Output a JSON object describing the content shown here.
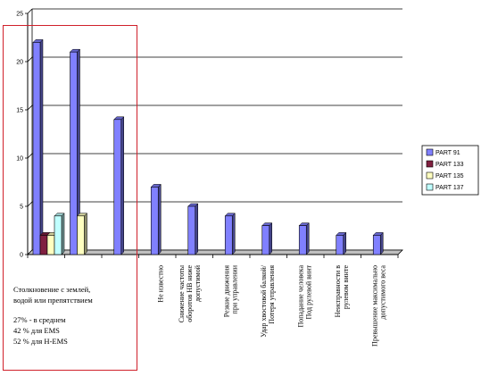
{
  "chart_data": {
    "type": "bar",
    "categories": [
      "",
      "",
      "",
      "Не известно",
      "Снижение частоты оборотов НВ ниже допустимой",
      "Резкие движения при управлении",
      "Удар хвостовой балкой/ Потеря управления",
      "Попадание человека Под рулевой винт",
      "Неисправности в рулевом винте",
      "Превышение максимально допустимого веса"
    ],
    "category_lines": [
      [],
      [],
      [],
      [
        "Не известно"
      ],
      [
        "Снижение частоты",
        "оборотов НВ ниже",
        "допустимой"
      ],
      [
        "Резкие движения",
        "при управлении"
      ],
      [
        "Удар хвостовой балкой/",
        "Потеря управления"
      ],
      [
        "Попадание человека",
        "Под рулевой винт"
      ],
      [
        "Неисправности в",
        "рулевом винте"
      ],
      [
        "Превышение максимально",
        "допустимого веса"
      ]
    ],
    "series": [
      {
        "name": "PART 91",
        "color": "#8080ff",
        "values": [
          22,
          21,
          14,
          7,
          5,
          4,
          3,
          3,
          2,
          2
        ]
      },
      {
        "name": "PART 133",
        "color": "#802040",
        "values": [
          2,
          null,
          null,
          null,
          null,
          null,
          null,
          null,
          null,
          null
        ]
      },
      {
        "name": "PART 135",
        "color": "#ffffc0",
        "values": [
          2,
          4,
          null,
          null,
          null,
          null,
          null,
          null,
          null,
          null
        ]
      },
      {
        "name": "PART 137",
        "color": "#c0ffff",
        "values": [
          4,
          null,
          null,
          null,
          null,
          null,
          null,
          null,
          null,
          null
        ]
      }
    ],
    "ylim": [
      0,
      25
    ],
    "yticks": [
      "0",
      "5",
      "10",
      "15",
      "20",
      "25"
    ],
    "grid": true,
    "legend_position": "right"
  },
  "annotation": {
    "title_line1": "Столкновение с землей,",
    "title_line2": "водой или препятствием",
    "stat1": "27% - в среднем",
    "stat2": "42 % для EMS",
    "stat3": "52 % для H-EMS"
  }
}
